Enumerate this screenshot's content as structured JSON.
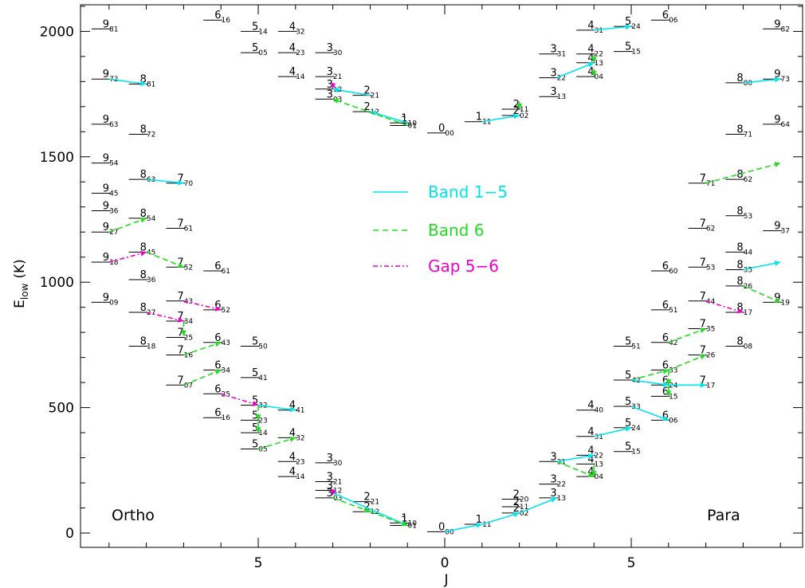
{
  "chart_data": {
    "type": "scatter",
    "xlabel": "J",
    "ylabel_main": "E",
    "ylabel_sub": "low",
    "ylabel_unit": "(K)",
    "xlim": [
      -9.5,
      9.5
    ],
    "ylim": [
      -50,
      2130
    ],
    "x_ticks": [
      {
        "pos": -5,
        "label": "5"
      },
      {
        "pos": 0,
        "label": "0"
      },
      {
        "pos": 5,
        "label": "5"
      }
    ],
    "y_ticks": [
      0,
      500,
      1000,
      1500,
      2000
    ],
    "corner_labels": {
      "left": "Ortho",
      "right": "Para"
    },
    "legend": [
      {
        "label": "Band 1−5",
        "color": "#00e5ee",
        "dash": "solid"
      },
      {
        "label": "Band 6",
        "color": "#22dd22",
        "dash": "dashed"
      },
      {
        "label": "Gap 5−6",
        "color": "#ee00cc",
        "dash": "dashdot"
      }
    ],
    "levels": [
      {
        "j": 0,
        "E": 1595,
        "n": "0",
        "s": "00"
      },
      {
        "j": -1,
        "E": 1625,
        "n": "1",
        "s": "01"
      },
      {
        "j": -1,
        "E": 1635,
        "n": "1",
        "s": "10"
      },
      {
        "j": 1,
        "E": 1640,
        "n": "1",
        "s": "11"
      },
      {
        "j": 2,
        "E": 1665,
        "n": "2",
        "s": "02"
      },
      {
        "j": 2,
        "E": 1690,
        "n": "2",
        "s": "11"
      },
      {
        "j": -2,
        "E": 1680,
        "n": "2",
        "s": "12"
      },
      {
        "j": -2,
        "E": 1745,
        "n": "2",
        "s": "21"
      },
      {
        "j": -3,
        "E": 1730,
        "n": "3",
        "s": "03"
      },
      {
        "j": -3,
        "E": 1770,
        "n": "3",
        "s": "12"
      },
      {
        "j": -3,
        "E": 1820,
        "n": "3",
        "s": "21"
      },
      {
        "j": -3,
        "E": 1915,
        "n": "3",
        "s": "30"
      },
      {
        "j": 3,
        "E": 1740,
        "n": "3",
        "s": "13"
      },
      {
        "j": 3,
        "E": 1815,
        "n": "3",
        "s": "22"
      },
      {
        "j": 3,
        "E": 1910,
        "n": "3",
        "s": "31"
      },
      {
        "j": -4,
        "E": 1820,
        "n": "4",
        "s": "14"
      },
      {
        "j": -4,
        "E": 1915,
        "n": "4",
        "s": "23"
      },
      {
        "j": -4,
        "E": 2000,
        "n": "4",
        "s": "32"
      },
      {
        "j": 4,
        "E": 1820,
        "n": "4",
        "s": "04"
      },
      {
        "j": 4,
        "E": 1875,
        "n": "4",
        "s": "13"
      },
      {
        "j": 4,
        "E": 1910,
        "n": "4",
        "s": "22"
      },
      {
        "j": 4,
        "E": 2005,
        "n": "4",
        "s": "31"
      },
      {
        "j": -5,
        "E": 1915,
        "n": "5",
        "s": "05"
      },
      {
        "j": -5,
        "E": 2000,
        "n": "5",
        "s": "14"
      },
      {
        "j": 5,
        "E": 1920,
        "n": "5",
        "s": "15"
      },
      {
        "j": 5,
        "E": 2020,
        "n": "5",
        "s": "24"
      },
      {
        "j": -6,
        "E": 2045,
        "n": "6",
        "s": "16"
      },
      {
        "j": 6,
        "E": 2045,
        "n": "6",
        "s": "06"
      },
      {
        "j": -9,
        "E": 2010,
        "n": "9",
        "s": "81"
      },
      {
        "j": -9,
        "E": 1810,
        "n": "9",
        "s": "72"
      },
      {
        "j": -8,
        "E": 1790,
        "n": "8",
        "s": "81"
      },
      {
        "j": -9,
        "E": 1630,
        "n": "9",
        "s": "63"
      },
      {
        "j": -8,
        "E": 1590,
        "n": "8",
        "s": "72"
      },
      {
        "j": -9,
        "E": 1475,
        "n": "9",
        "s": "54"
      },
      {
        "j": -8,
        "E": 1410,
        "n": "8",
        "s": "63"
      },
      {
        "j": -7,
        "E": 1395,
        "n": "7",
        "s": "70"
      },
      {
        "j": -9,
        "E": 1355,
        "n": "9",
        "s": "45"
      },
      {
        "j": -9,
        "E": 1285,
        "n": "9",
        "s": "36"
      },
      {
        "j": -8,
        "E": 1255,
        "n": "8",
        "s": "54"
      },
      {
        "j": -9,
        "E": 1200,
        "n": "9",
        "s": "27"
      },
      {
        "j": -7,
        "E": 1215,
        "n": "7",
        "s": "61"
      },
      {
        "j": -8,
        "E": 1120,
        "n": "8",
        "s": "45"
      },
      {
        "j": -9,
        "E": 1080,
        "n": "9",
        "s": "18"
      },
      {
        "j": -7,
        "E": 1060,
        "n": "7",
        "s": "52"
      },
      {
        "j": -6,
        "E": 1045,
        "n": "6",
        "s": "61"
      },
      {
        "j": -8,
        "E": 1010,
        "n": "8",
        "s": "36"
      },
      {
        "j": -9,
        "E": 920,
        "n": "9",
        "s": "09"
      },
      {
        "j": -7,
        "E": 925,
        "n": "7",
        "s": "43"
      },
      {
        "j": -6,
        "E": 890,
        "n": "6",
        "s": "52"
      },
      {
        "j": -8,
        "E": 880,
        "n": "8",
        "s": "27"
      },
      {
        "j": -7,
        "E": 845,
        "n": "7",
        "s": "34"
      },
      {
        "j": -7,
        "E": 780,
        "n": "7",
        "s": "25"
      },
      {
        "j": -8,
        "E": 745,
        "n": "8",
        "s": "18"
      },
      {
        "j": -6,
        "E": 760,
        "n": "6",
        "s": "43"
      },
      {
        "j": -5,
        "E": 745,
        "n": "5",
        "s": "50"
      },
      {
        "j": -7,
        "E": 710,
        "n": "7",
        "s": "16"
      },
      {
        "j": -6,
        "E": 650,
        "n": "6",
        "s": "34"
      },
      {
        "j": -5,
        "E": 620,
        "n": "5",
        "s": "41"
      },
      {
        "j": -7,
        "E": 590,
        "n": "7",
        "s": "07"
      },
      {
        "j": -6,
        "E": 555,
        "n": "6",
        "s": "25"
      },
      {
        "j": -5,
        "E": 510,
        "n": "5",
        "s": "32"
      },
      {
        "j": -4,
        "E": 490,
        "n": "4",
        "s": "41"
      },
      {
        "j": -6,
        "E": 460,
        "n": "6",
        "s": "16"
      },
      {
        "j": -5,
        "E": 450,
        "n": "5",
        "s": "23"
      },
      {
        "j": -5,
        "E": 400,
        "n": "5",
        "s": "14"
      },
      {
        "j": -4,
        "E": 380,
        "n": "4",
        "s": "32"
      },
      {
        "j": -5,
        "E": 335,
        "n": "5",
        "s": "05"
      },
      {
        "j": -4,
        "E": 285,
        "n": "4",
        "s": "23"
      },
      {
        "j": -3,
        "E": 280,
        "n": "3",
        "s": "30"
      },
      {
        "j": -4,
        "E": 225,
        "n": "4",
        "s": "14"
      },
      {
        "j": -3,
        "E": 205,
        "n": "3",
        "s": "21"
      },
      {
        "j": -3,
        "E": 170,
        "n": "3",
        "s": "12"
      },
      {
        "j": -3,
        "E": 140,
        "n": "3",
        "s": "03"
      },
      {
        "j": -2,
        "E": 125,
        "n": "2",
        "s": "21"
      },
      {
        "j": -2,
        "E": 85,
        "n": "2",
        "s": "12"
      },
      {
        "j": -1,
        "E": 40,
        "n": "1",
        "s": "10"
      },
      {
        "j": -1,
        "E": 30,
        "n": "1",
        "s": "01"
      },
      {
        "j": 0,
        "E": 5,
        "n": "0",
        "s": "00"
      },
      {
        "j": 1,
        "E": 35,
        "n": "1",
        "s": "11"
      },
      {
        "j": 2,
        "E": 80,
        "n": "2",
        "s": "02"
      },
      {
        "j": 2,
        "E": 105,
        "n": "2",
        "s": "11"
      },
      {
        "j": 2,
        "E": 135,
        "n": "2",
        "s": "20"
      },
      {
        "j": 3,
        "E": 140,
        "n": "3",
        "s": "13"
      },
      {
        "j": 3,
        "E": 195,
        "n": "3",
        "s": "22"
      },
      {
        "j": 3,
        "E": 285,
        "n": "3",
        "s": "31"
      },
      {
        "j": 4,
        "E": 225,
        "n": "4",
        "s": "04"
      },
      {
        "j": 4,
        "E": 275,
        "n": "4",
        "s": "13"
      },
      {
        "j": 4,
        "E": 310,
        "n": "4",
        "s": "22"
      },
      {
        "j": 4,
        "E": 385,
        "n": "4",
        "s": "31"
      },
      {
        "j": 4,
        "E": 490,
        "n": "4",
        "s": "40"
      },
      {
        "j": 5,
        "E": 325,
        "n": "5",
        "s": "15"
      },
      {
        "j": 5,
        "E": 420,
        "n": "5",
        "s": "24"
      },
      {
        "j": 5,
        "E": 505,
        "n": "5",
        "s": "33"
      },
      {
        "j": 5,
        "E": 610,
        "n": "5",
        "s": "42"
      },
      {
        "j": 5,
        "E": 745,
        "n": "5",
        "s": "51"
      },
      {
        "j": 6,
        "E": 450,
        "n": "6",
        "s": "06"
      },
      {
        "j": 6,
        "E": 545,
        "n": "6",
        "s": "15"
      },
      {
        "j": 6,
        "E": 590,
        "n": "6",
        "s": "24"
      },
      {
        "j": 6,
        "E": 650,
        "n": "6",
        "s": "33"
      },
      {
        "j": 6,
        "E": 760,
        "n": "6",
        "s": "42"
      },
      {
        "j": 6,
        "E": 890,
        "n": "6",
        "s": "51"
      },
      {
        "j": 6,
        "E": 1045,
        "n": "6",
        "s": "60"
      },
      {
        "j": 7,
        "E": 590,
        "n": "7",
        "s": "17"
      },
      {
        "j": 7,
        "E": 710,
        "n": "7",
        "s": "26"
      },
      {
        "j": 7,
        "E": 815,
        "n": "7",
        "s": "35"
      },
      {
        "j": 7,
        "E": 925,
        "n": "7",
        "s": "44"
      },
      {
        "j": 7,
        "E": 1060,
        "n": "7",
        "s": "53"
      },
      {
        "j": 7,
        "E": 1215,
        "n": "7",
        "s": "62"
      },
      {
        "j": 7,
        "E": 1395,
        "n": "7",
        "s": "71"
      },
      {
        "j": 8,
        "E": 745,
        "n": "8",
        "s": "08"
      },
      {
        "j": 8,
        "E": 880,
        "n": "8",
        "s": "17"
      },
      {
        "j": 8,
        "E": 985,
        "n": "8",
        "s": "26"
      },
      {
        "j": 8,
        "E": 1050,
        "n": "8",
        "s": "35"
      },
      {
        "j": 8,
        "E": 1120,
        "n": "8",
        "s": "44"
      },
      {
        "j": 8,
        "E": 1265,
        "n": "8",
        "s": "53"
      },
      {
        "j": 8,
        "E": 1410,
        "n": "8",
        "s": "62"
      },
      {
        "j": 8,
        "E": 1590,
        "n": "8",
        "s": "71"
      },
      {
        "j": 8,
        "E": 1795,
        "n": "8",
        "s": "80"
      },
      {
        "j": 9,
        "E": 920,
        "n": "9",
        "s": "19"
      },
      {
        "j": 9,
        "E": 1205,
        "n": "9",
        "s": "37"
      },
      {
        "j": 9,
        "E": 1630,
        "n": "9",
        "s": "64"
      },
      {
        "j": 9,
        "E": 1810,
        "n": "9",
        "s": "73"
      },
      {
        "j": 9,
        "E": 2010,
        "n": "9",
        "s": "82"
      }
    ],
    "transitions": [
      {
        "band": "1-5",
        "from": [
          -1,
          1635
        ],
        "to": [
          -2,
          1680
        ]
      },
      {
        "band": "1-5",
        "from": [
          -2,
          1745
        ],
        "to": [
          -3,
          1770
        ]
      },
      {
        "band": "6",
        "from": [
          -1,
          1625
        ],
        "to": [
          -3,
          1730
        ]
      },
      {
        "band": "1-5",
        "from": [
          1,
          1640
        ],
        "to": [
          2,
          1665
        ]
      },
      {
        "band": "6",
        "from": [
          2,
          1720
        ],
        "to": [
          2,
          1690
        ]
      },
      {
        "band": "1-5",
        "from": [
          3,
          1815
        ],
        "to": [
          4,
          1875
        ]
      },
      {
        "band": "6",
        "from": [
          4,
          1905
        ],
        "to": [
          4,
          1875
        ]
      },
      {
        "band": "6",
        "from": [
          4,
          1850
        ],
        "to": [
          4,
          1820
        ]
      },
      {
        "band": "1-5",
        "from": [
          4,
          2005
        ],
        "to": [
          5,
          2020
        ]
      },
      {
        "band": "gap",
        "from": [
          -3,
          1795
        ],
        "to": [
          -3,
          1770
        ]
      },
      {
        "band": "1-5",
        "from": [
          -9,
          1810
        ],
        "to": [
          -8,
          1790
        ]
      },
      {
        "band": "1-5",
        "from": [
          -8,
          1410
        ],
        "to": [
          -7,
          1395
        ]
      },
      {
        "band": "6",
        "from": [
          -9,
          1200
        ],
        "to": [
          -8,
          1255
        ]
      },
      {
        "band": "6",
        "from": [
          -8,
          1120
        ],
        "to": [
          -7,
          1060
        ]
      },
      {
        "band": "gap",
        "from": [
          -9,
          1080
        ],
        "to": [
          -8,
          1120
        ]
      },
      {
        "band": "gap",
        "from": [
          -7,
          925
        ],
        "to": [
          -6,
          890
        ]
      },
      {
        "band": "gap",
        "from": [
          -8,
          880
        ],
        "to": [
          -7,
          845
        ]
      },
      {
        "band": "6",
        "from": [
          -7,
          845
        ],
        "to": [
          -7,
          785
        ]
      },
      {
        "band": "6",
        "from": [
          -7,
          710
        ],
        "to": [
          -6,
          760
        ]
      },
      {
        "band": "6",
        "from": [
          -7,
          590
        ],
        "to": [
          -6,
          650
        ]
      },
      {
        "band": "gap",
        "from": [
          -6,
          555
        ],
        "to": [
          -5,
          510
        ]
      },
      {
        "band": "1-5",
        "from": [
          -5,
          510
        ],
        "to": [
          -4,
          490
        ]
      },
      {
        "band": "6",
        "from": [
          -5,
          510
        ],
        "to": [
          -5,
          450
        ]
      },
      {
        "band": "6",
        "from": [
          -5,
          445
        ],
        "to": [
          -5,
          400
        ]
      },
      {
        "band": "6",
        "from": [
          -5,
          335
        ],
        "to": [
          -4,
          380
        ]
      },
      {
        "band": "6",
        "from": [
          -3,
          140
        ],
        "to": [
          -2,
          85
        ]
      },
      {
        "band": "1-5",
        "from": [
          -3,
          160
        ],
        "to": [
          -1,
          30
        ]
      },
      {
        "band": "6",
        "from": [
          -2,
          85
        ],
        "to": [
          -1,
          30
        ]
      },
      {
        "band": "gap",
        "from": [
          -3,
          175
        ],
        "to": [
          -3,
          150
        ]
      },
      {
        "band": "1-5",
        "from": [
          0,
          5
        ],
        "to": [
          1,
          35
        ]
      },
      {
        "band": "1-5",
        "from": [
          1,
          35
        ],
        "to": [
          2,
          80
        ]
      },
      {
        "band": "1-5",
        "from": [
          2,
          80
        ],
        "to": [
          3,
          140
        ]
      },
      {
        "band": "6",
        "from": [
          3,
          285
        ],
        "to": [
          4,
          225
        ]
      },
      {
        "band": "1-5",
        "from": [
          3,
          285
        ],
        "to": [
          4,
          310
        ]
      },
      {
        "band": "6",
        "from": [
          4,
          270
        ],
        "to": [
          4,
          225
        ]
      },
      {
        "band": "1-5",
        "from": [
          4,
          385
        ],
        "to": [
          5,
          420
        ]
      },
      {
        "band": "1-5",
        "from": [
          5,
          505
        ],
        "to": [
          6,
          450
        ]
      },
      {
        "band": "6",
        "from": [
          5,
          610
        ],
        "to": [
          6,
          650
        ]
      },
      {
        "band": "1-5",
        "from": [
          5,
          610
        ],
        "to": [
          6,
          590
        ]
      },
      {
        "band": "6",
        "from": [
          6,
          650
        ],
        "to": [
          6,
          590
        ]
      },
      {
        "band": "6",
        "from": [
          6,
          590
        ],
        "to": [
          6,
          545
        ]
      },
      {
        "band": "6",
        "from": [
          6,
          760
        ],
        "to": [
          7,
          815
        ]
      },
      {
        "band": "6",
        "from": [
          6,
          650
        ],
        "to": [
          7,
          710
        ]
      },
      {
        "band": "1-5",
        "from": [
          6,
          590
        ],
        "to": [
          7,
          590
        ]
      },
      {
        "band": "gap",
        "from": [
          7,
          925
        ],
        "to": [
          8,
          880
        ]
      },
      {
        "band": "6",
        "from": [
          8,
          985
        ],
        "to": [
          9,
          920
        ]
      },
      {
        "band": "1-5",
        "from": [
          8,
          1050
        ],
        "to": [
          9,
          1080
        ]
      },
      {
        "band": "6",
        "from": [
          7,
          1395
        ],
        "to": [
          9,
          1475
        ]
      },
      {
        "band": "1-5",
        "from": [
          8,
          1795
        ],
        "to": [
          9,
          1810
        ]
      }
    ]
  }
}
